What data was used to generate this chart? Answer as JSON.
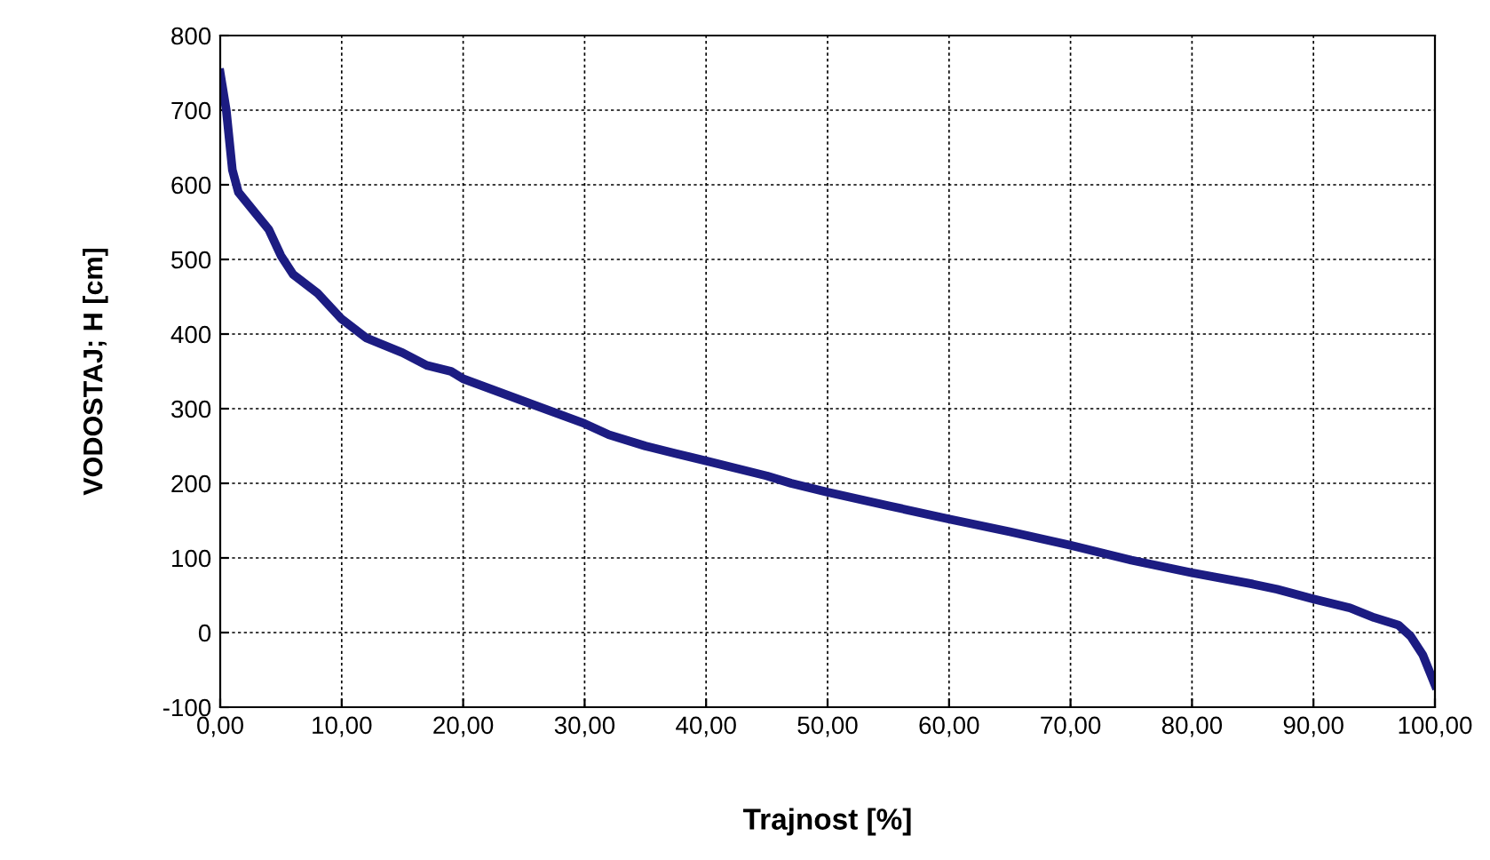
{
  "chart_data": {
    "type": "line",
    "xlabel": "Trajnost [%]",
    "ylabel": "VODOSTAJ; H [cm]",
    "series": [
      {
        "color": "#1c1c82",
        "x": [
          0,
          0.5,
          1,
          1.5,
          3,
          4,
          5,
          6,
          8,
          10,
          12,
          15,
          17,
          19,
          20,
          25,
          30,
          32,
          35,
          40,
          45,
          47,
          50,
          55,
          60,
          65,
          70,
          75,
          80,
          85,
          87,
          90,
          93,
          95,
          97,
          98,
          99,
          100
        ],
        "values": [
          750,
          700,
          620,
          590,
          560,
          540,
          505,
          480,
          455,
          420,
          395,
          375,
          358,
          350,
          340,
          310,
          280,
          265,
          250,
          230,
          210,
          200,
          188,
          170,
          152,
          135,
          117,
          97,
          80,
          65,
          58,
          45,
          33,
          20,
          10,
          -5,
          -30,
          -70
        ]
      }
    ],
    "xlim": [
      0,
      100
    ],
    "xticks": [
      {
        "value": 0,
        "label": "0,00"
      },
      {
        "value": 10,
        "label": "10,00"
      },
      {
        "value": 20,
        "label": "20,00"
      },
      {
        "value": 30,
        "label": "30,00"
      },
      {
        "value": 40,
        "label": "40,00"
      },
      {
        "value": 50,
        "label": "50,00"
      },
      {
        "value": 60,
        "label": "60,00"
      },
      {
        "value": 70,
        "label": "70,00"
      },
      {
        "value": 80,
        "label": "80,00"
      },
      {
        "value": 90,
        "label": "90,00"
      },
      {
        "value": 100,
        "label": "100,00"
      }
    ],
    "ylim": [
      -100,
      800
    ],
    "yticks": [
      -100,
      0,
      100,
      200,
      300,
      400,
      500,
      600,
      700,
      800
    ],
    "grid": true,
    "line_style": "solid"
  }
}
